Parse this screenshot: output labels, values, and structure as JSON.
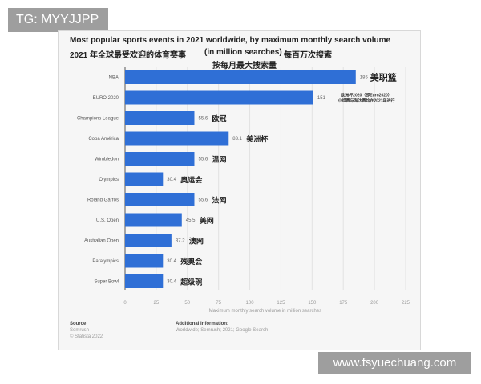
{
  "overlay": {
    "tg_label": "TG: MYYJJPP",
    "watermark": "www.fsyuechuang.com"
  },
  "chart_data": {
    "type": "bar",
    "orientation": "horizontal",
    "title": "Most popular sports events in 2021 worldwide, by maximum monthly search volume",
    "title_cn": "2021 年全球最受欢迎的体育赛事",
    "subtitle": "(in million searches)",
    "subtitle_cn": "每百万次搜索",
    "subtitle_cn2": "按每月最大搜索量",
    "categories": [
      "NBA",
      "EURO 2020",
      "Champions League",
      "Copa América",
      "Wimbledon",
      "Olympics",
      "Roland Garros",
      "U.S. Open",
      "Australian Open",
      "Paralympics",
      "Super Bowl"
    ],
    "values": [
      185,
      151,
      55.6,
      83.1,
      55.6,
      30.4,
      55.6,
      45.5,
      37.2,
      30.4,
      30.4
    ],
    "value_labels": [
      "185",
      "151",
      "55.6",
      "83.1",
      "55.6",
      "30.4",
      "55.6",
      "45.5",
      "37.2",
      "30.4",
      "30.4"
    ],
    "annotations": [
      "美职篮",
      "",
      "欧冠",
      "美洲杯",
      "温网",
      "奥运会",
      "法网",
      "美网",
      "澳网",
      "残奥会",
      "超级碗"
    ],
    "euro_note": [
      "欧洲杯2020（即Euro2020）",
      "小组赛与淘汰赛均在2021年进行"
    ],
    "xlabel": "Maximum monthly search volume in million searches",
    "xlim": [
      0,
      225
    ],
    "xticks": [
      0,
      25,
      50,
      75,
      100,
      125,
      150,
      175,
      200,
      225
    ],
    "grid": true,
    "bar_color": "#2f6fd6"
  },
  "footer": {
    "source_title": "Source",
    "source_lines": [
      "Semrush",
      "© Statista 2022"
    ],
    "info_title": "Additional Information:",
    "info_text": "Worldwide; Semrush; 2021; Google Search"
  }
}
